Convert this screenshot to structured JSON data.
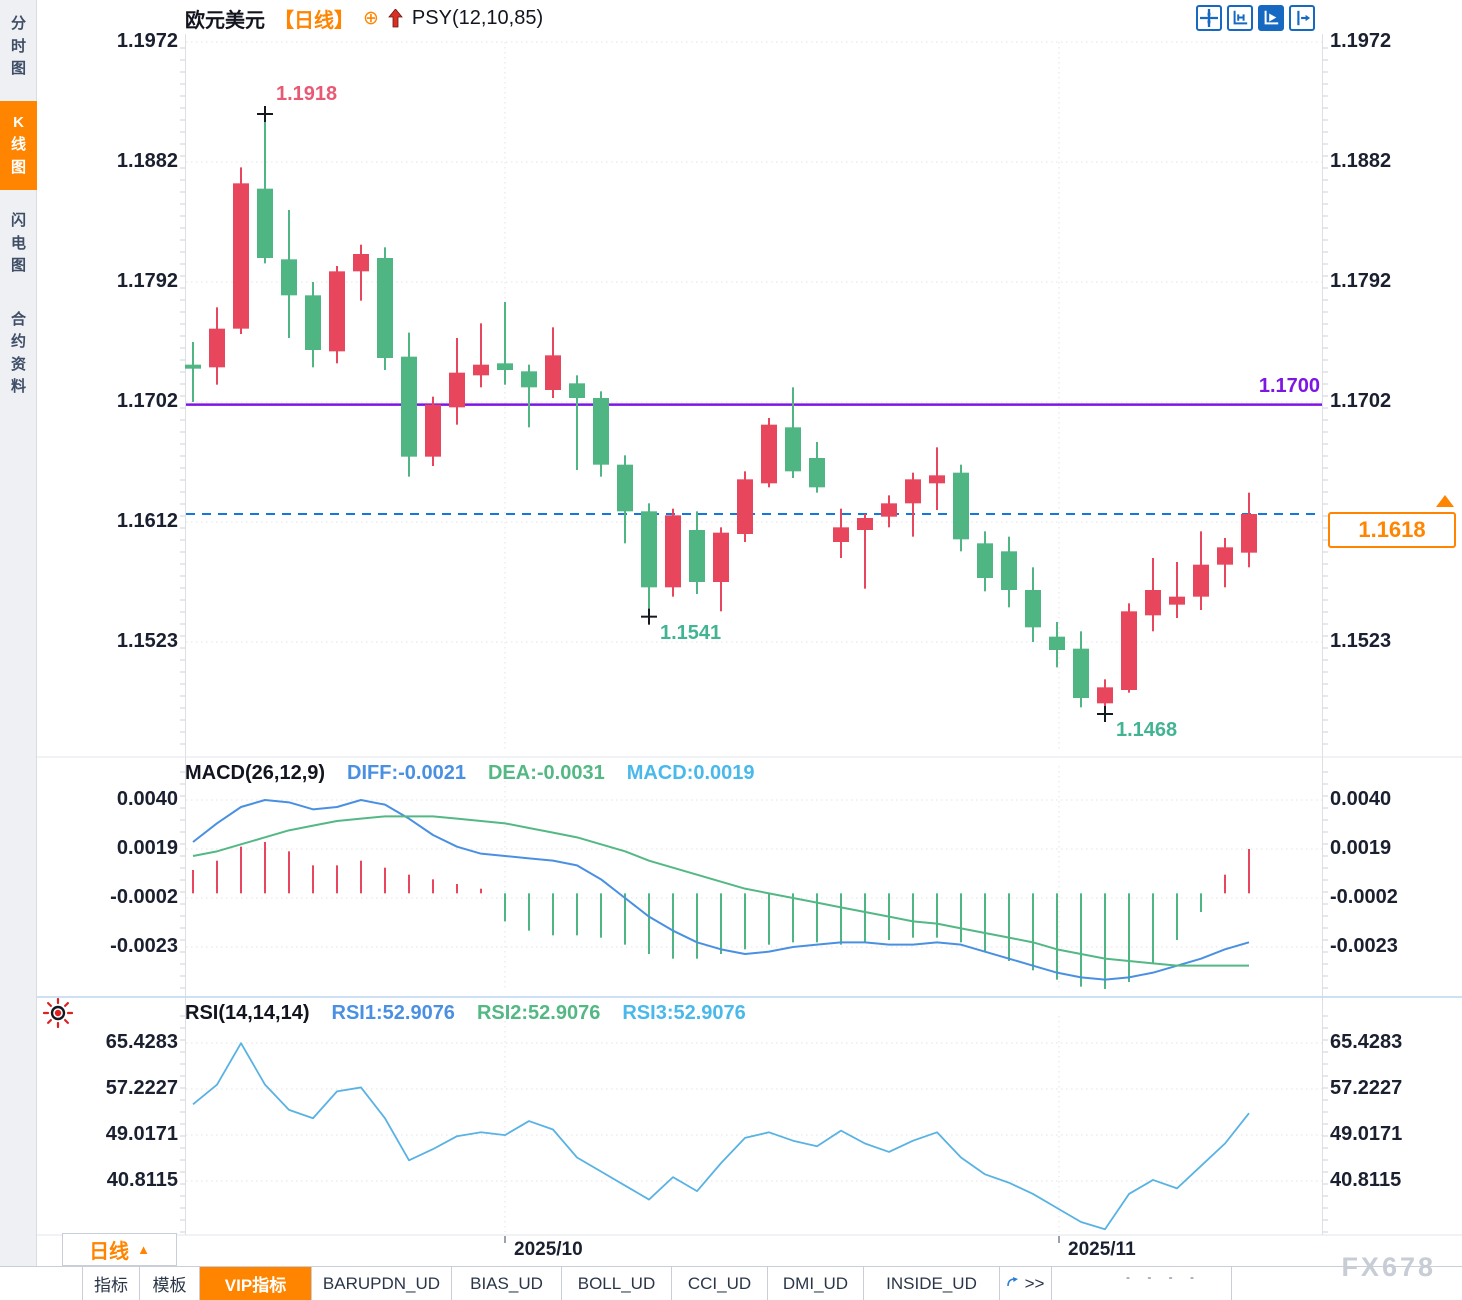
{
  "header": {
    "symbol": "欧元美元",
    "period_tag": "【日线】",
    "add_icon": "⊕",
    "overlay_indicator": "PSY(12,10,85)"
  },
  "sidebar": {
    "items": [
      {
        "label": "分时图",
        "active": false
      },
      {
        "label": "K线图",
        "active": true
      },
      {
        "label": "闪电图",
        "active": false
      },
      {
        "label": "合约资料",
        "active": false
      }
    ]
  },
  "toolbar": {
    "icons": [
      "pan-crosshair",
      "axis-range",
      "axis-play",
      "collapse-right"
    ],
    "active_index": 2
  },
  "price_axis": {
    "tick_labels": [
      "1.1972",
      "1.1882",
      "1.1792",
      "1.1702",
      "1.1612",
      "1.1523"
    ]
  },
  "horizontal_line": {
    "label": "1.1700",
    "price": 1.17
  },
  "last_price": {
    "label": "1.1618",
    "price": 1.1618
  },
  "annotations": [
    {
      "label": "1.1918",
      "price": 1.1918,
      "candle_index": 3,
      "kind": "high"
    },
    {
      "label": "1.1541",
      "price": 1.1541,
      "candle_index": 19,
      "kind": "low"
    },
    {
      "label": "1.1468",
      "price": 1.1468,
      "candle_index": 38,
      "kind": "low"
    }
  ],
  "x_axis": {
    "labels": [
      "2025/10",
      "2025/11"
    ],
    "tick_x": [
      505,
      1059
    ]
  },
  "macd_panel": {
    "title": "MACD(26,12,9)",
    "legend": [
      {
        "label": "DIFF:-0.0021",
        "color": "#4a90e2"
      },
      {
        "label": "DEA:-0.0031",
        "color": "#53b884"
      },
      {
        "label": "MACD:0.0019",
        "color": "#49b8ea"
      }
    ],
    "tick_labels": [
      "0.0040",
      "0.0019",
      "-0.0002",
      "-0.0023"
    ]
  },
  "rsi_panel": {
    "title": "RSI(14,14,14)",
    "legend": [
      {
        "label": "RSI1:52.9076",
        "color": "#4a90e2"
      },
      {
        "label": "RSI2:52.9076",
        "color": "#53b884"
      },
      {
        "label": "RSI3:52.9076",
        "color": "#49b8ea"
      }
    ],
    "tick_labels": [
      "65.4283",
      "57.2227",
      "49.0171",
      "40.8115"
    ]
  },
  "period_selector": {
    "label": "日线",
    "arrow": "▲"
  },
  "bottom_tabs": {
    "tabs": [
      {
        "label": "指标",
        "active": false
      },
      {
        "label": "模板",
        "active": false
      },
      {
        "label": "VIP指标",
        "active": true
      },
      {
        "label": "BARUPDN_UD",
        "active": false
      },
      {
        "label": "BIAS_UD",
        "active": false
      },
      {
        "label": "BOLL_UD",
        "active": false
      },
      {
        "label": "CCI_UD",
        "active": false
      },
      {
        "label": "DMI_UD",
        "active": false
      },
      {
        "label": "INSIDE_UD",
        "active": false
      },
      {
        "label": ">>",
        "active": false,
        "icon": "expand-arrow"
      }
    ],
    "clipped_marks": "- - - -"
  },
  "watermark": "FX678",
  "colors": {
    "up": "#e8465c",
    "down": "#4eb583",
    "hline": "#7d16e3",
    "last_price_line": "#1578df",
    "accent_orange": "#ff8400",
    "diff_line": "#4a90e2",
    "dea_line": "#53b884",
    "rsi_line": "#58b2e4",
    "annotation_high": "#e85a73",
    "annotation_low": "#43b493",
    "axis_text": "#1b2030",
    "grid": "#e3e3e3",
    "toolbar_blue": "#1669c1",
    "psy_arrow_red": "#d93025"
  },
  "chart_data": [
    {
      "type": "candlestick",
      "title": "欧元美元 日线",
      "color_convention": "red=up, green=down",
      "y_ticks": [
        1.1972,
        1.1882,
        1.1792,
        1.1702,
        1.1612,
        1.1523
      ],
      "ylim": [
        1.1468,
        1.1972
      ],
      "x_labels": [
        "2025/10",
        "2025/11"
      ],
      "support_resistance_line": 1.17,
      "last_close": 1.1618,
      "marked_high": 1.1918,
      "marked_lows": [
        1.1541,
        1.1468
      ],
      "ohlc": [
        [
          1.173,
          1.1747,
          1.1702,
          1.1727
        ],
        [
          1.1728,
          1.1773,
          1.1715,
          1.1757
        ],
        [
          1.1757,
          1.1878,
          1.1753,
          1.1866
        ],
        [
          1.1862,
          1.1918,
          1.1806,
          1.181
        ],
        [
          1.1809,
          1.1846,
          1.175,
          1.1782
        ],
        [
          1.1782,
          1.1792,
          1.1728,
          1.1741
        ],
        [
          1.174,
          1.1804,
          1.1731,
          1.18
        ],
        [
          1.18,
          1.182,
          1.1778,
          1.1813
        ],
        [
          1.181,
          1.1818,
          1.1726,
          1.1735
        ],
        [
          1.1736,
          1.1754,
          1.1646,
          1.1661
        ],
        [
          1.1661,
          1.1706,
          1.1654,
          1.17
        ],
        [
          1.1698,
          1.175,
          1.1685,
          1.1724
        ],
        [
          1.1722,
          1.1761,
          1.1713,
          1.173
        ],
        [
          1.1731,
          1.1777,
          1.1715,
          1.1726
        ],
        [
          1.1725,
          1.173,
          1.1683,
          1.1713
        ],
        [
          1.1711,
          1.1758,
          1.1705,
          1.1737
        ],
        [
          1.1716,
          1.1722,
          1.1651,
          1.1705
        ],
        [
          1.1705,
          1.171,
          1.1646,
          1.1655
        ],
        [
          1.1655,
          1.1662,
          1.1596,
          1.162
        ],
        [
          1.162,
          1.1626,
          1.1541,
          1.1563
        ],
        [
          1.1563,
          1.1622,
          1.1556,
          1.1617
        ],
        [
          1.1606,
          1.162,
          1.1558,
          1.1567
        ],
        [
          1.1567,
          1.1608,
          1.1545,
          1.1604
        ],
        [
          1.1603,
          1.165,
          1.1597,
          1.1644
        ],
        [
          1.1641,
          1.169,
          1.1638,
          1.1685
        ],
        [
          1.1683,
          1.1713,
          1.1645,
          1.165
        ],
        [
          1.166,
          1.1672,
          1.1634,
          1.1638
        ],
        [
          1.1597,
          1.1622,
          1.1585,
          1.1608
        ],
        [
          1.1606,
          1.1618,
          1.1562,
          1.1615
        ],
        [
          1.1616,
          1.1632,
          1.1608,
          1.1626
        ],
        [
          1.1626,
          1.1649,
          1.1601,
          1.1644
        ],
        [
          1.1641,
          1.1668,
          1.1621,
          1.1647
        ],
        [
          1.1649,
          1.1655,
          1.159,
          1.1599
        ],
        [
          1.1596,
          1.1605,
          1.156,
          1.157
        ],
        [
          1.159,
          1.1601,
          1.1548,
          1.1561
        ],
        [
          1.1561,
          1.1578,
          1.1522,
          1.1533
        ],
        [
          1.1526,
          1.1537,
          1.1503,
          1.1516
        ],
        [
          1.1517,
          1.153,
          1.1473,
          1.148
        ],
        [
          1.1476,
          1.1494,
          1.1468,
          1.1488
        ],
        [
          1.1486,
          1.1551,
          1.1484,
          1.1545
        ],
        [
          1.1542,
          1.1585,
          1.153,
          1.1561
        ],
        [
          1.155,
          1.1582,
          1.154,
          1.1556
        ],
        [
          1.1556,
          1.1605,
          1.1546,
          1.158
        ],
        [
          1.158,
          1.16,
          1.1563,
          1.1593
        ],
        [
          1.1589,
          1.1634,
          1.1578,
          1.1618
        ]
      ]
    },
    {
      "type": "bar",
      "title": "MACD(26,12,9)",
      "y_ticks": [
        0.004,
        0.0019,
        -0.0002,
        -0.0023
      ],
      "current": {
        "DIFF": -0.0021,
        "DEA": -0.0031,
        "MACD": 0.0019
      },
      "series": [
        {
          "name": "DIFF",
          "style": "line",
          "values": [
            0.0022,
            0.003,
            0.0037,
            0.004,
            0.0039,
            0.0036,
            0.0037,
            0.004,
            0.0038,
            0.0032,
            0.0025,
            0.002,
            0.0017,
            0.0016,
            0.0015,
            0.0014,
            0.0012,
            0.0006,
            -0.0002,
            -0.001,
            -0.0016,
            -0.0021,
            -0.0024,
            -0.0026,
            -0.0025,
            -0.0023,
            -0.0022,
            -0.0021,
            -0.0021,
            -0.0022,
            -0.0022,
            -0.0021,
            -0.0022,
            -0.0025,
            -0.0028,
            -0.0031,
            -0.0034,
            -0.0036,
            -0.0037,
            -0.0036,
            -0.0034,
            -0.0031,
            -0.0028,
            -0.0024,
            -0.0021
          ]
        },
        {
          "name": "DEA",
          "style": "line",
          "values": [
            0.0016,
            0.0018,
            0.0021,
            0.0024,
            0.0027,
            0.0029,
            0.0031,
            0.0032,
            0.0033,
            0.0033,
            0.0033,
            0.0032,
            0.0031,
            0.003,
            0.0028,
            0.0026,
            0.0024,
            0.0021,
            0.0018,
            0.0014,
            0.0011,
            0.0008,
            0.0005,
            0.0002,
            0.0,
            -0.0002,
            -0.0004,
            -0.0006,
            -0.0008,
            -0.001,
            -0.0012,
            -0.0013,
            -0.0015,
            -0.0017,
            -0.0019,
            -0.0021,
            -0.0024,
            -0.0026,
            -0.0028,
            -0.0029,
            -0.003,
            -0.0031,
            -0.0031,
            -0.0031,
            -0.0031
          ]
        },
        {
          "name": "MACD",
          "style": "histogram",
          "values": [
            0.001,
            0.0014,
            0.002,
            0.0022,
            0.0018,
            0.0012,
            0.0012,
            0.0014,
            0.0011,
            0.0008,
            0.0006,
            0.0004,
            0.0002,
            -0.0012,
            -0.0016,
            -0.0018,
            -0.0018,
            -0.0019,
            -0.0022,
            -0.0026,
            -0.0028,
            -0.0028,
            -0.0026,
            -0.0024,
            -0.0022,
            -0.0021,
            -0.0021,
            -0.0022,
            -0.0021,
            -0.002,
            -0.0019,
            -0.0019,
            -0.0021,
            -0.0025,
            -0.0029,
            -0.0033,
            -0.0037,
            -0.004,
            -0.0041,
            -0.0038,
            -0.003,
            -0.002,
            -0.0008,
            0.0008,
            0.0019
          ]
        }
      ]
    },
    {
      "type": "line",
      "title": "RSI(14,14,14)",
      "y_ticks": [
        65.4283,
        57.2227,
        49.0171,
        40.8115
      ],
      "current": {
        "RSI1": 52.9076,
        "RSI2": 52.9076,
        "RSI3": 52.9076
      },
      "values": [
        54.5,
        58.0,
        65.4,
        58.0,
        53.5,
        52.0,
        56.8,
        57.5,
        52.0,
        44.5,
        46.5,
        48.8,
        49.5,
        49.0,
        51.5,
        50.0,
        45.0,
        42.5,
        40.0,
        37.5,
        41.5,
        39.0,
        44.0,
        48.5,
        49.5,
        48.0,
        47.0,
        49.8,
        47.5,
        46.0,
        48.0,
        49.5,
        45.0,
        42.0,
        40.5,
        38.5,
        36.0,
        33.5,
        32.2,
        38.5,
        41.0,
        39.5,
        43.5,
        47.5,
        52.9
      ]
    }
  ]
}
